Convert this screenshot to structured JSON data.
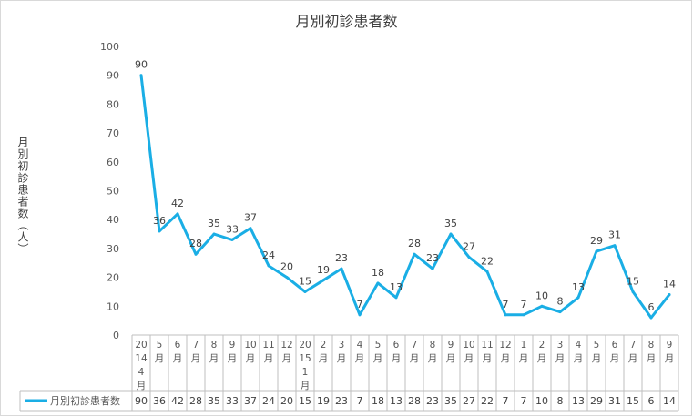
{
  "chart_data": {
    "type": "line",
    "title": "月別初診患者数",
    "ylabel": "月別初診患者数（人）",
    "ylim": [
      0,
      100
    ],
    "yticks": [
      0,
      10,
      20,
      30,
      40,
      50,
      60,
      70,
      80,
      90,
      100
    ],
    "categories": [
      "2014 4月",
      "5月",
      "6月",
      "7月",
      "8月",
      "9月",
      "10月",
      "11月",
      "12月",
      "2015 1月",
      "2月",
      "3月",
      "4月",
      "5月",
      "6月",
      "7月",
      "8月",
      "9月",
      "10月",
      "11月",
      "12月",
      "1月",
      "2月",
      "3月",
      "4月",
      "5月",
      "6月",
      "7月",
      "8月",
      "9月"
    ],
    "category_lines": [
      [
        "20",
        "14",
        "4",
        "月"
      ],
      [
        "5",
        "月"
      ],
      [
        "6",
        "月"
      ],
      [
        "7",
        "月"
      ],
      [
        "8",
        "月"
      ],
      [
        "9",
        "月"
      ],
      [
        "10",
        "月"
      ],
      [
        "11",
        "月"
      ],
      [
        "12",
        "月"
      ],
      [
        "20",
        "15",
        "1",
        "月"
      ],
      [
        "2",
        "月"
      ],
      [
        "3",
        "月"
      ],
      [
        "4",
        "月"
      ],
      [
        "5",
        "月"
      ],
      [
        "6",
        "月"
      ],
      [
        "7",
        "月"
      ],
      [
        "8",
        "月"
      ],
      [
        "9",
        "月"
      ],
      [
        "10",
        "月"
      ],
      [
        "11",
        "月"
      ],
      [
        "12",
        "月"
      ],
      [
        "1",
        "月"
      ],
      [
        "2",
        "月"
      ],
      [
        "3",
        "月"
      ],
      [
        "4",
        "月"
      ],
      [
        "5",
        "月"
      ],
      [
        "6",
        "月"
      ],
      [
        "7",
        "月"
      ],
      [
        "8",
        "月"
      ],
      [
        "9",
        "月"
      ]
    ],
    "series": [
      {
        "name": "月別初診患者数",
        "color": "#1aaee5",
        "values": [
          90,
          36,
          42,
          28,
          35,
          33,
          37,
          24,
          20,
          15,
          19,
          23,
          7,
          18,
          13,
          28,
          23,
          35,
          27,
          22,
          7,
          7,
          10,
          8,
          13,
          29,
          31,
          15,
          6,
          14
        ]
      }
    ],
    "grid": false,
    "legend": "bottom-left data table"
  }
}
